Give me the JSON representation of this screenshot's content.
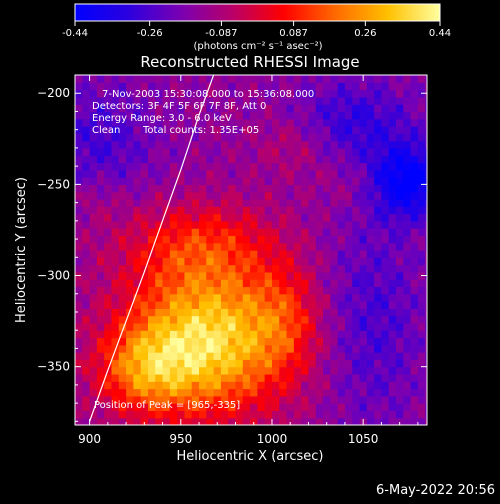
{
  "colorbar": {
    "ticks": [
      "-0.44",
      "-0.26",
      "-0.087",
      "0.087",
      "0.26",
      "0.44"
    ],
    "tick_values": [
      -0.44,
      -0.26,
      -0.087,
      0.087,
      0.26,
      0.44
    ],
    "range": [
      -0.44,
      0.44
    ],
    "units": "(photons cm⁻² s⁻¹ asec⁻²)",
    "stops": [
      "#0000ff",
      "#2a00e0",
      "#7800b4",
      "#b8006a",
      "#ff0000",
      "#ff6a00",
      "#ffc000",
      "#ffffa0"
    ]
  },
  "chart_data": {
    "type": "heatmap",
    "title": "Reconstructed RHESSI Image",
    "xlabel": "Heliocentric X (arcsec)",
    "ylabel": "Heliocentric Y (arcsec)",
    "xlim": [
      892,
      1085
    ],
    "ylim": [
      -382,
      -190
    ],
    "xticks": [
      900,
      950,
      1000,
      1050
    ],
    "yticks": [
      -350,
      -300,
      -250,
      -200
    ],
    "annotations": [
      "7-Nov-2003 15:30:08.000 to 15:36:08.000",
      "Detectors: 3F 4F 5F 6F 7F 8F, Att 0",
      "Energy Range: 3.0 - 6.0 keV",
      "Clean",
      "Total counts: 1.35E+05"
    ],
    "peak_label": "Position of Peak = [965,-335]",
    "peak": [
      965,
      -335
    ],
    "limb_curve": [
      [
        900,
        -380
      ],
      [
        910,
        -352
      ],
      [
        920,
        -325
      ],
      [
        930,
        -298
      ],
      [
        940,
        -270
      ],
      [
        950,
        -242
      ],
      [
        960,
        -212
      ],
      [
        968,
        -190
      ]
    ],
    "blobs": [
      {
        "x": 965,
        "y": -335,
        "sx": 32,
        "sy": 28,
        "amp": 0.52
      },
      {
        "x": 930,
        "y": -352,
        "sx": 18,
        "sy": 16,
        "amp": 0.24
      },
      {
        "x": 960,
        "y": -282,
        "sx": 30,
        "sy": 16,
        "amp": 0.2
      },
      {
        "x": 1008,
        "y": -322,
        "sx": 13,
        "sy": 20,
        "amp": 0.13
      },
      {
        "x": 1012,
        "y": -228,
        "sx": 15,
        "sy": 12,
        "amp": 0.09
      },
      {
        "x": 1040,
        "y": -250,
        "sx": 12,
        "sy": 9,
        "amp": 0.04
      },
      {
        "x": 905,
        "y": -258,
        "sx": 9,
        "sy": 9,
        "amp": 0.05
      },
      {
        "x": 1075,
        "y": -248,
        "sx": 14,
        "sy": 14,
        "amp": -0.32
      },
      {
        "x": 1045,
        "y": -215,
        "sx": 24,
        "sy": 16,
        "amp": -0.16
      },
      {
        "x": 1055,
        "y": -325,
        "sx": 20,
        "sy": 42,
        "amp": -0.13
      },
      {
        "x": 905,
        "y": -225,
        "sx": 22,
        "sy": 22,
        "amp": -0.13
      }
    ],
    "base_level": -0.14
  },
  "footer": {
    "date": "6-May-2022 20:56"
  }
}
